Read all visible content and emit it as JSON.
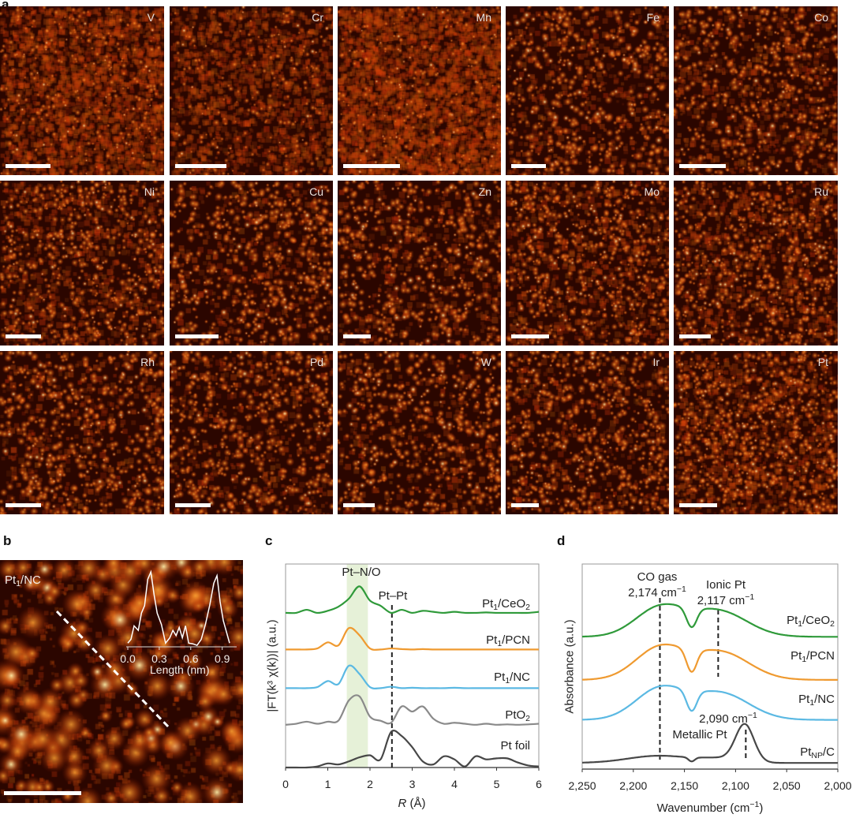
{
  "panel_letters": {
    "a": "a",
    "b": "b",
    "c": "c",
    "d": "d"
  },
  "panel_a": {
    "tiles": [
      {
        "element": "V"
      },
      {
        "element": "Cr"
      },
      {
        "element": "Mn"
      },
      {
        "element": "Fe"
      },
      {
        "element": "Co"
      },
      {
        "element": "Ni"
      },
      {
        "element": "Cu"
      },
      {
        "element": "Zn"
      },
      {
        "element": "Mo"
      },
      {
        "element": "Ru"
      },
      {
        "element": "Rh"
      },
      {
        "element": "Pd"
      },
      {
        "element": "W"
      },
      {
        "element": "Ir"
      },
      {
        "element": "Pt"
      }
    ]
  },
  "panel_b": {
    "sample_label": [
      {
        "t": "Pt"
      },
      {
        "t": "1",
        "sub": true
      },
      {
        "t": "/NC"
      }
    ],
    "inset_xlabel": "Length (nm)"
  },
  "colors": {
    "green": "#2f9a3a",
    "orange": "#ef9a30",
    "blue": "#5bb9e3",
    "gray": "#8a8a8a",
    "dark": "#474747",
    "band": "#e6f1d8"
  },
  "chart_data": [
    {
      "id": "b-inset",
      "type": "line",
      "title": "",
      "xlabel": "Length (nm)",
      "ylabel": "",
      "xticks": [
        "0.0",
        "0.3",
        "0.6",
        "0.9"
      ],
      "xtick_values": [
        0.0,
        0.3,
        0.6,
        0.9
      ],
      "xlim": [
        0,
        1.0
      ],
      "ylim": [
        0,
        1
      ],
      "x": [
        0,
        0.03,
        0.06,
        0.1,
        0.13,
        0.16,
        0.19,
        0.22,
        0.25,
        0.28,
        0.32,
        0.36,
        0.4,
        0.43,
        0.46,
        0.49,
        0.52,
        0.55,
        0.58,
        0.62,
        0.66,
        0.7,
        0.74,
        0.78,
        0.82,
        0.85,
        0.88,
        0.91,
        0.94,
        0.97
      ],
      "series": [
        {
          "name": "profile",
          "values": [
            0.05,
            0.1,
            0.28,
            0.22,
            0.45,
            0.55,
            0.9,
            1.0,
            0.7,
            0.45,
            0.3,
            0.05,
            0.12,
            0.22,
            0.15,
            0.26,
            0.12,
            0.28,
            0.05,
            0.04,
            0.02,
            0.1,
            0.3,
            0.55,
            0.85,
            0.95,
            0.6,
            0.35,
            0.2,
            0.05
          ]
        }
      ]
    },
    {
      "id": "c",
      "type": "line",
      "xlabel_parts": [
        {
          "t": "R",
          "i": true
        },
        {
          "t": " (Å)"
        }
      ],
      "ylabel": "|FT(k³ χ(k))| (a.u.)",
      "xlim": [
        0,
        6
      ],
      "ylim": [
        0,
        10
      ],
      "xticks": [
        "0",
        "1",
        "2",
        "3",
        "4",
        "5",
        "6"
      ],
      "x": [
        0,
        0.25,
        0.5,
        0.75,
        1,
        1.25,
        1.5,
        1.75,
        2,
        2.25,
        2.5,
        2.75,
        3,
        3.25,
        3.5,
        3.75,
        4,
        4.25,
        4.5,
        4.75,
        5,
        5.25,
        5.5,
        5.75,
        6
      ],
      "band": {
        "label": "Pt–N/O",
        "range": [
          1.45,
          1.95
        ]
      },
      "reference_line": {
        "label": "Pt–Pt",
        "x": 2.52
      },
      "series": [
        {
          "name": "Pt1/CeO2",
          "label": [
            {
              "t": "Pt"
            },
            {
              "t": "1",
              "sub": true
            },
            {
              "t": "/CeO"
            },
            {
              "t": "2",
              "sub": true
            }
          ],
          "color": "green",
          "values": [
            7.6,
            7.6,
            7.75,
            7.6,
            7.7,
            7.9,
            8.3,
            8.9,
            8.2,
            7.95,
            7.6,
            7.75,
            7.6,
            7.7,
            7.65,
            7.6,
            7.65,
            7.6,
            7.6,
            7.62,
            7.6,
            7.6,
            7.6,
            7.6,
            7.65
          ]
        },
        {
          "name": "Pt1/PCN",
          "label": [
            {
              "t": "Pt"
            },
            {
              "t": "1",
              "sub": true
            },
            {
              "t": "/PCN"
            }
          ],
          "color": "orange",
          "values": [
            5.8,
            5.8,
            5.8,
            5.85,
            6.15,
            6.0,
            6.85,
            6.5,
            5.85,
            5.8,
            5.85,
            5.82,
            5.8,
            5.82,
            5.8,
            5.8,
            5.8,
            5.8,
            5.8,
            5.8,
            5.8,
            5.8,
            5.8,
            5.8,
            5.8
          ]
        },
        {
          "name": "Pt1/NC",
          "label": [
            {
              "t": "Pt"
            },
            {
              "t": "1",
              "sub": true
            },
            {
              "t": "/NC"
            }
          ],
          "color": "blue",
          "values": [
            3.9,
            3.9,
            3.9,
            3.95,
            4.25,
            4.1,
            5.0,
            4.6,
            3.95,
            3.9,
            3.97,
            3.9,
            3.92,
            3.9,
            3.9,
            3.9,
            3.92,
            3.9,
            3.9,
            3.9,
            3.9,
            3.9,
            3.9,
            3.9,
            3.9
          ]
        },
        {
          "name": "PtO2",
          "label": [
            {
              "t": "PtO"
            },
            {
              "t": "2",
              "sub": true
            }
          ],
          "color": "gray",
          "values": [
            2.1,
            2.15,
            2.25,
            2.15,
            2.25,
            2.3,
            3.3,
            3.5,
            2.5,
            2.3,
            2.2,
            3.0,
            2.75,
            3.0,
            2.4,
            2.15,
            2.2,
            2.15,
            2.1,
            2.15,
            2.1,
            2.12,
            2.1,
            2.12,
            2.15
          ]
        },
        {
          "name": "Pt foil",
          "label": [
            {
              "t": "Pt foil"
            }
          ],
          "color": "dark",
          "values": [
            0,
            0,
            0,
            0.05,
            0.2,
            0.15,
            0.3,
            0.5,
            0.6,
            0.4,
            1.75,
            1.55,
            1.0,
            0.3,
            0.15,
            0.55,
            0.4,
            0.05,
            0.55,
            0.4,
            0.45,
            0.45,
            0.25,
            0.1,
            0.05
          ]
        }
      ]
    },
    {
      "id": "d",
      "type": "line",
      "xlabel_parts": [
        {
          "t": "Wavenumber (cm"
        },
        {
          "t": "−1",
          "sup": true
        },
        {
          "t": ")"
        }
      ],
      "ylabel": "Absorbance (a.u.)",
      "xlim": [
        2250,
        2000
      ],
      "ylim": [
        0,
        10
      ],
      "xticks": [
        "2,250",
        "2,200",
        "2,150",
        "2,100",
        "2,050",
        "2,000"
      ],
      "xtick_values": [
        2250,
        2200,
        2150,
        2100,
        2050,
        2000
      ],
      "annotations": [
        {
          "lines": [
            [
              {
                "t": "CO gas"
              }
            ],
            [
              {
                "t": "2,174 cm"
              },
              {
                "t": "−1",
                "sup": true
              }
            ]
          ],
          "x": 2174
        },
        {
          "lines": [
            [
              {
                "t": "Ionic Pt"
              }
            ],
            [
              {
                "t": "2,117 cm"
              },
              {
                "t": "−1",
                "sup": true
              }
            ]
          ],
          "x": 2117
        },
        {
          "lines": [
            [
              {
                "t": "2,090 cm"
              },
              {
                "t": "−1",
                "sup": true
              }
            ],
            [
              {
                "t": "Metallic Pt"
              }
            ]
          ],
          "x": 2090
        }
      ],
      "series": [
        {
          "name": "Pt1/CeO2",
          "label": [
            {
              "t": "Pt"
            },
            {
              "t": "1",
              "sub": true
            },
            {
              "t": "/CeO"
            },
            {
              "t": "2",
              "sub": true
            }
          ],
          "color": "green",
          "baseline": 6.45,
          "components": [
            {
              "center": 2174,
              "amp": 1.4,
              "width": 24
            },
            {
              "center": 2117,
              "amp": 1.25,
              "width": 28
            },
            {
              "center": 2143,
              "amp": -0.95,
              "width": 5
            }
          ]
        },
        {
          "name": "Pt1/PCN",
          "label": [
            {
              "t": "Pt"
            },
            {
              "t": "1",
              "sub": true
            },
            {
              "t": "/PCN"
            }
          ],
          "color": "orange",
          "baseline": 4.35,
          "components": [
            {
              "center": 2174,
              "amp": 1.55,
              "width": 24
            },
            {
              "center": 2115,
              "amp": 1.35,
              "width": 28
            },
            {
              "center": 2143,
              "amp": -1.1,
              "width": 5
            }
          ]
        },
        {
          "name": "Pt1/NC",
          "label": [
            {
              "t": "Pt"
            },
            {
              "t": "1",
              "sub": true
            },
            {
              "t": "/NC"
            }
          ],
          "color": "blue",
          "baseline": 2.4,
          "components": [
            {
              "center": 2174,
              "amp": 1.5,
              "width": 24
            },
            {
              "center": 2115,
              "amp": 1.3,
              "width": 28
            },
            {
              "center": 2143,
              "amp": -1.0,
              "width": 5
            }
          ]
        },
        {
          "name": "PtNP/C",
          "label": [
            {
              "t": "Pt"
            },
            {
              "t": "NP",
              "sub": true
            },
            {
              "t": "/C"
            }
          ],
          "color": "dark",
          "baseline": 0.3,
          "components": [
            {
              "center": 2175,
              "amp": 0.35,
              "width": 30
            },
            {
              "center": 2115,
              "amp": 0.2,
              "width": 20
            },
            {
              "center": 2091,
              "amp": 1.8,
              "width": 9
            },
            {
              "center": 2143,
              "amp": -0.2,
              "width": 3
            }
          ]
        }
      ]
    }
  ]
}
